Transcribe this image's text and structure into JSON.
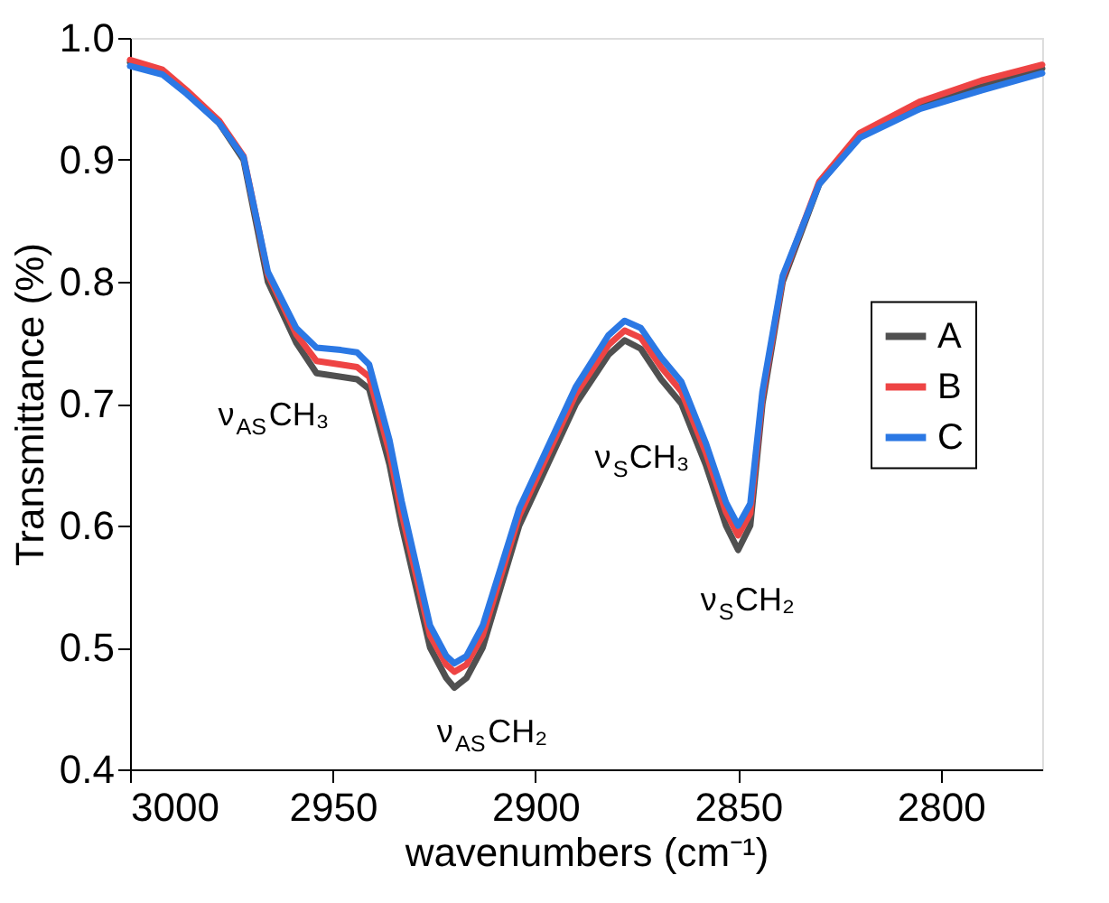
{
  "chart_data": {
    "type": "line",
    "xlabel": "wavenumbers (cm⁻¹)",
    "ylabel": "Transmittance (%)",
    "x": [
      3000,
      2992,
      2986,
      2978,
      2972,
      2969,
      2966,
      2959,
      2954,
      2948,
      2944,
      2941,
      2936,
      2933,
      2926,
      2922,
      2920,
      2917,
      2913,
      2904,
      2897,
      2890,
      2882,
      2878,
      2874,
      2869,
      2864,
      2858,
      2853,
      2850,
      2847,
      2844,
      2839,
      2830,
      2820,
      2805,
      2790,
      2775
    ],
    "series": [
      {
        "name": "A",
        "color": "#505050",
        "values": [
          0.98,
          0.972,
          0.955,
          0.93,
          0.9,
          0.85,
          0.8,
          0.75,
          0.725,
          0.722,
          0.72,
          0.712,
          0.65,
          0.6,
          0.5,
          0.475,
          0.467,
          0.475,
          0.5,
          0.6,
          0.65,
          0.7,
          0.74,
          0.752,
          0.745,
          0.72,
          0.7,
          0.65,
          0.6,
          0.58,
          0.6,
          0.7,
          0.8,
          0.88,
          0.92,
          0.945,
          0.96,
          0.975
        ]
      },
      {
        "name": "B",
        "color": "#ee4444",
        "values": [
          0.982,
          0.974,
          0.957,
          0.932,
          0.903,
          0.855,
          0.806,
          0.757,
          0.735,
          0.732,
          0.73,
          0.722,
          0.66,
          0.61,
          0.51,
          0.486,
          0.48,
          0.486,
          0.51,
          0.608,
          0.658,
          0.708,
          0.748,
          0.76,
          0.754,
          0.73,
          0.71,
          0.66,
          0.611,
          0.592,
          0.61,
          0.706,
          0.803,
          0.882,
          0.922,
          0.948,
          0.965,
          0.978
        ]
      },
      {
        "name": "C",
        "color": "#2b78e4",
        "values": [
          0.977,
          0.97,
          0.954,
          0.93,
          0.902,
          0.855,
          0.808,
          0.762,
          0.746,
          0.744,
          0.742,
          0.732,
          0.67,
          0.62,
          0.518,
          0.493,
          0.487,
          0.493,
          0.518,
          0.614,
          0.664,
          0.714,
          0.756,
          0.768,
          0.762,
          0.738,
          0.718,
          0.668,
          0.619,
          0.6,
          0.618,
          0.71,
          0.805,
          0.88,
          0.918,
          0.942,
          0.957,
          0.971
        ]
      }
    ],
    "xlim": [
      3000,
      2775
    ],
    "xticks": [
      3000,
      2950,
      2900,
      2850,
      2800
    ],
    "ylim": [
      0.4,
      1.0
    ],
    "yticks": [
      0.4,
      0.5,
      0.6,
      0.7,
      0.8,
      0.9,
      {
        "value": 1.0,
        "label": "1.0"
      }
    ],
    "annotations": [
      "ν$_{AS}$CH₃",
      "ν$_{AS}$CH₂",
      "ν$_{S}$CH₃",
      "ν$_{S}$CH₂"
    ],
    "grid": false,
    "legend": "right",
    "line_style": "solid",
    "marker": "none"
  }
}
